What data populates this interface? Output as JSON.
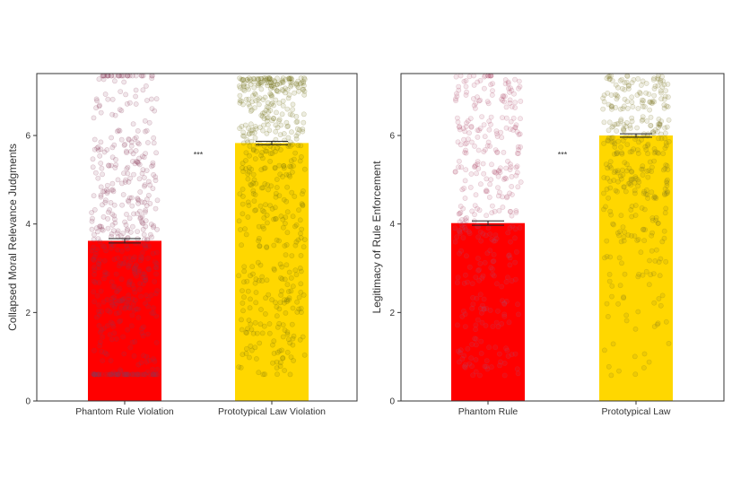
{
  "chart_data": [
    {
      "type": "bar",
      "categories": [
        "Phantom Rule Violation",
        "Prototypical Law Violation"
      ],
      "values": [
        3.62,
        5.83
      ],
      "error": [
        0.05,
        0.04
      ],
      "colors": [
        "#ff0000",
        "#ffd700"
      ],
      "point_colors": [
        "#8b3a5a",
        "#6e6a10"
      ],
      "xlabel": "",
      "ylabel": "Collapsed Moral Relevance Judgments",
      "yticks": [
        0,
        2,
        4,
        6
      ],
      "ylim": [
        0,
        7.4
      ],
      "annotation": "***",
      "grid": false,
      "points": "jittered raw responses overlaid on each bar"
    },
    {
      "type": "bar",
      "categories": [
        "Phantom Rule",
        "Prototypical Law"
      ],
      "values": [
        4.02,
        6.0
      ],
      "error": [
        0.05,
        0.04
      ],
      "colors": [
        "#ff0000",
        "#ffd700"
      ],
      "point_colors": [
        "#b05070",
        "#7a7420"
      ],
      "xlabel": "",
      "ylabel": "Legitimacy of Rule Enforcement",
      "yticks": [
        0,
        2,
        4,
        6
      ],
      "ylim": [
        0,
        7.4
      ],
      "annotation": "***",
      "grid": false,
      "points": "jittered raw responses on discrete scale levels"
    }
  ]
}
